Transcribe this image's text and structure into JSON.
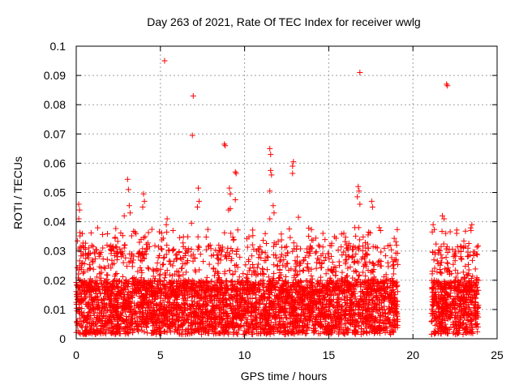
{
  "chart_data": {
    "type": "scatter",
    "title": "Day 263 of 2021, Rate Of TEC Index for receiver wwlg",
    "xlabel": "GPS time / hours",
    "ylabel": "ROTI / TECUs",
    "xlim": [
      0,
      25
    ],
    "ylim": [
      0,
      0.1
    ],
    "xticks": [
      0,
      5,
      10,
      15,
      20,
      25
    ],
    "yticks": [
      0,
      0.01,
      0.02,
      0.03,
      0.04,
      0.05,
      0.06,
      0.07,
      0.08,
      0.09,
      0.1
    ],
    "xtick_labels": [
      "0",
      "5",
      "10",
      "15",
      "20",
      "25"
    ],
    "ytick_labels": [
      "0",
      "0.01",
      "0.02",
      "0.03",
      "0.04",
      "0.05",
      "0.06",
      "0.07",
      "0.08",
      "0.09",
      "0.1"
    ],
    "grid": true,
    "marker": "+",
    "color": "#ff0000",
    "data_ranges_hours": [
      [
        0,
        19.1
      ],
      [
        21.1,
        23.9
      ]
    ],
    "series": [
      {
        "name": "ROTI",
        "points": [
          [
            5.25,
            0.095
          ],
          [
            16.85,
            0.091
          ],
          [
            6.95,
            0.083
          ],
          [
            22.0,
            0.087
          ],
          [
            22.05,
            0.0865
          ],
          [
            6.9,
            0.0695
          ],
          [
            8.8,
            0.0665
          ],
          [
            8.85,
            0.066
          ],
          [
            11.5,
            0.065
          ],
          [
            11.55,
            0.063
          ],
          [
            12.9,
            0.0605
          ],
          [
            12.85,
            0.059
          ],
          [
            11.55,
            0.0575
          ],
          [
            11.6,
            0.056
          ],
          [
            12.85,
            0.0565
          ],
          [
            9.45,
            0.057
          ],
          [
            9.5,
            0.0565
          ],
          [
            3.05,
            0.0545
          ],
          [
            3.1,
            0.051
          ],
          [
            7.25,
            0.0515
          ],
          [
            9.1,
            0.0515
          ],
          [
            9.15,
            0.0495
          ],
          [
            9.45,
            0.0475
          ],
          [
            11.5,
            0.0505
          ],
          [
            16.75,
            0.052
          ],
          [
            16.8,
            0.0505
          ],
          [
            16.7,
            0.0485
          ],
          [
            16.85,
            0.046
          ],
          [
            17.55,
            0.047
          ],
          [
            17.6,
            0.045
          ],
          [
            4.0,
            0.0495
          ],
          [
            4.05,
            0.047
          ],
          [
            3.95,
            0.045
          ],
          [
            7.3,
            0.047
          ],
          [
            7.2,
            0.045
          ],
          [
            9.05,
            0.044
          ],
          [
            9.15,
            0.0445
          ],
          [
            0.15,
            0.046
          ],
          [
            0.2,
            0.044
          ],
          [
            0.15,
            0.041
          ],
          [
            2.85,
            0.042
          ],
          [
            3.15,
            0.0455
          ],
          [
            3.2,
            0.043
          ],
          [
            11.7,
            0.0455
          ],
          [
            11.75,
            0.043
          ],
          [
            13.2,
            0.0415
          ],
          [
            5.4,
            0.041
          ],
          [
            5.35,
            0.039
          ],
          [
            6.85,
            0.0395
          ],
          [
            11.5,
            0.041
          ],
          [
            16.55,
            0.038
          ],
          [
            18.0,
            0.038
          ],
          [
            21.75,
            0.042
          ],
          [
            21.85,
            0.041
          ],
          [
            23.5,
            0.039
          ],
          [
            23.45,
            0.037
          ],
          [
            21.2,
            0.039
          ],
          [
            21.15,
            0.0365
          ],
          [
            21.95,
            0.036
          ],
          [
            22.6,
            0.036
          ]
        ]
      }
    ]
  }
}
